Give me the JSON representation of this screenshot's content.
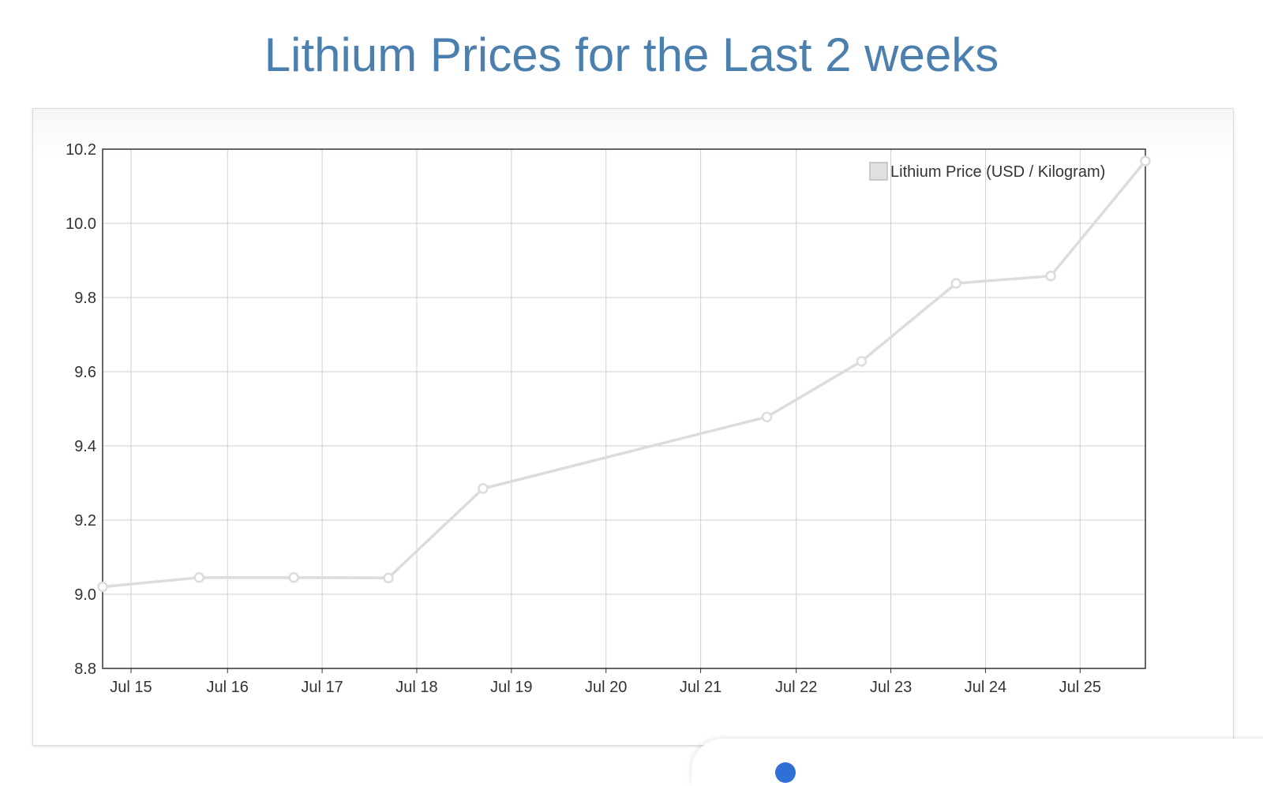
{
  "page": {
    "title": "Lithium Prices for the Last 2 weeks"
  },
  "colors": {
    "title": "#4a7fae",
    "series_line": "#dcdcdc",
    "grid": "#cfcfcf",
    "axis": "#333333",
    "tick_text": "#333333"
  },
  "chart_data": {
    "type": "line",
    "title": "",
    "xlabel": "",
    "ylabel": "",
    "ylim": [
      8.8,
      10.2
    ],
    "yticks": [
      "10.2",
      "10.0",
      "9.8",
      "9.6",
      "9.4",
      "9.2",
      "9.0",
      "8.8"
    ],
    "xlim": [
      14.7,
      25.72
    ],
    "xticks": [
      {
        "label": "Jul 15",
        "day": 15
      },
      {
        "label": "Jul 16",
        "day": 16.02
      },
      {
        "label": "Jul 17",
        "day": 17.02
      },
      {
        "label": "Jul 18",
        "day": 18.02
      },
      {
        "label": "Jul 19",
        "day": 19.02
      },
      {
        "label": "Jul 20",
        "day": 20.02
      },
      {
        "label": "Jul 21",
        "day": 21.02
      },
      {
        "label": "Jul 22",
        "day": 22.03
      },
      {
        "label": "Jul 23",
        "day": 23.03
      },
      {
        "label": "Jul 24",
        "day": 24.03
      },
      {
        "label": "Jul 25",
        "day": 25.03
      }
    ],
    "grid": true,
    "legend_position": "top-right",
    "series": [
      {
        "name": "Lithium Price (USD / Kilogram)",
        "points": [
          {
            "x": 14.7,
            "y": 9.02
          },
          {
            "x": 15.72,
            "y": 9.045
          },
          {
            "x": 16.72,
            "y": 9.045
          },
          {
            "x": 17.72,
            "y": 9.044
          },
          {
            "x": 18.72,
            "y": 9.285
          },
          {
            "x": 21.72,
            "y": 9.478
          },
          {
            "x": 22.72,
            "y": 9.628
          },
          {
            "x": 23.72,
            "y": 9.838
          },
          {
            "x": 24.72,
            "y": 9.858
          },
          {
            "x": 25.72,
            "y": 10.168
          }
        ]
      }
    ]
  }
}
